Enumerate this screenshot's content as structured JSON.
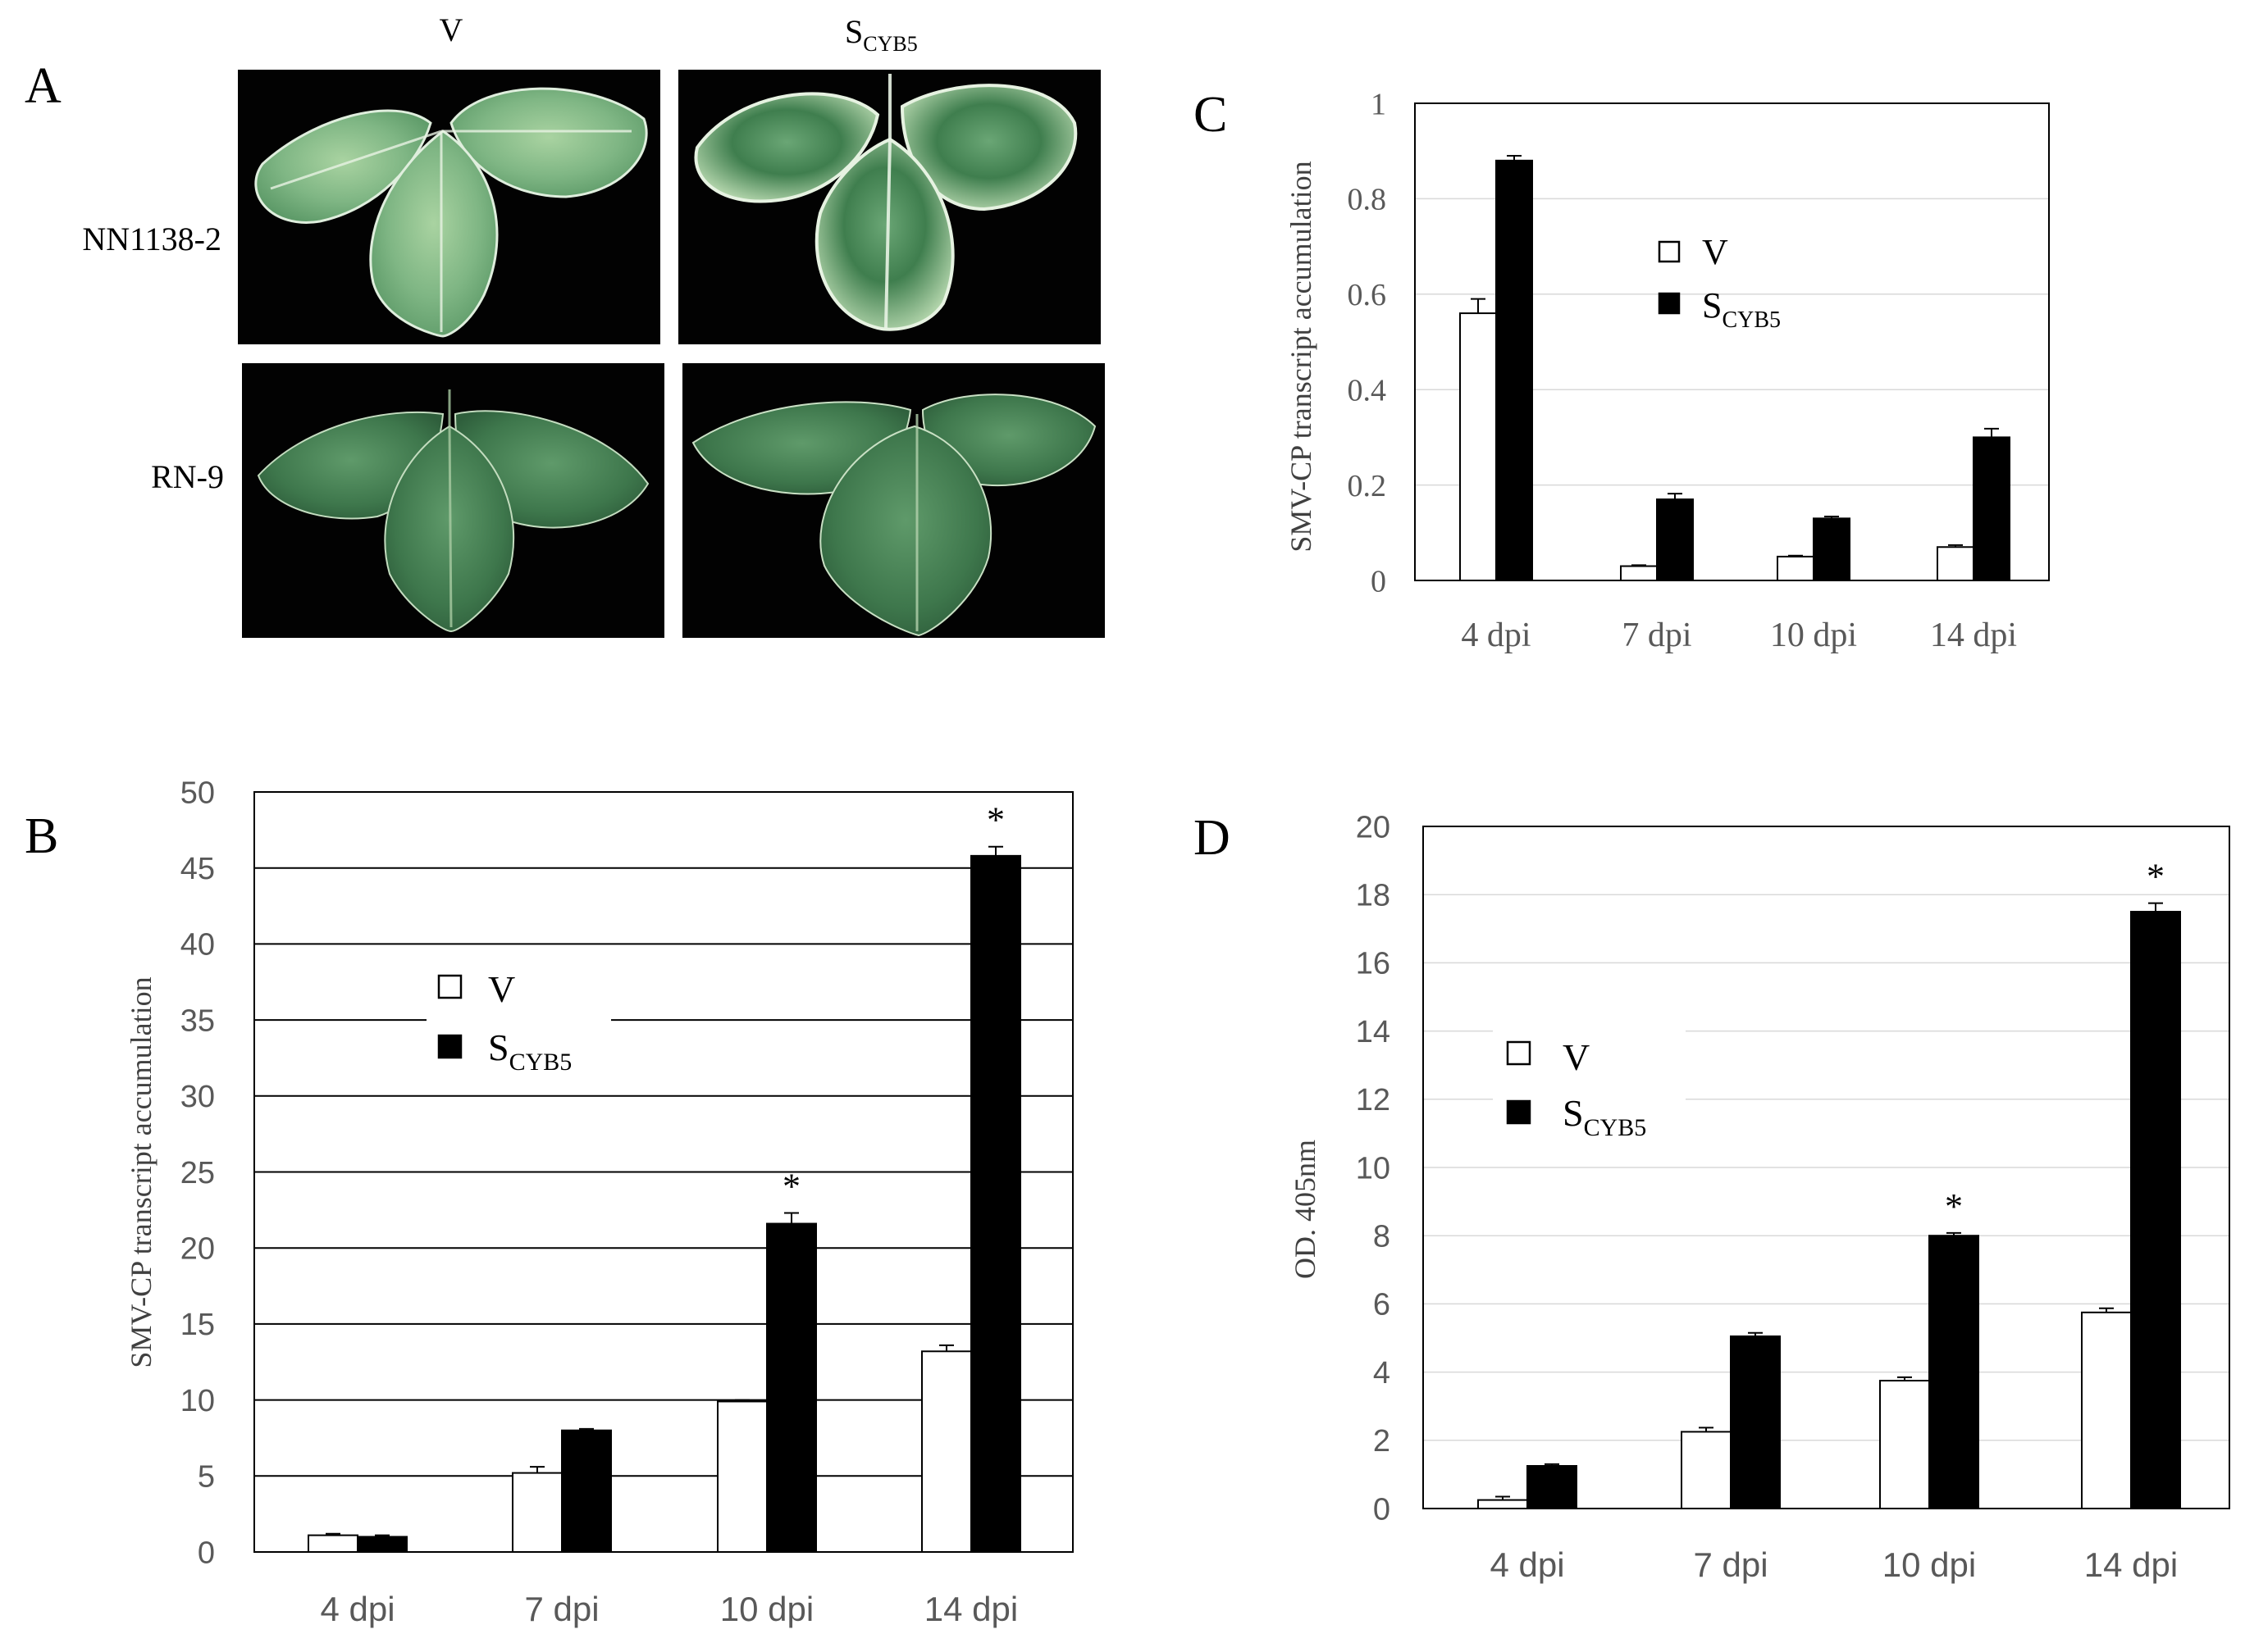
{
  "colors": {
    "bar_v": "#ffffff",
    "bar_s": "#000000",
    "leaf_bg": "#020202",
    "leaf_light": "#8fc38e",
    "leaf_dark": "#3f7b4b",
    "gridline": "#d9d9d9",
    "tick_text": "#595959"
  },
  "panel_a": {
    "letter": "A",
    "col_labels": [
      "V",
      "S",
      "CYB5"
    ],
    "row_labels": [
      "NN1138-2",
      "RN-9"
    ],
    "images": [
      {
        "name": "leaf-photo-nn1138-v",
        "symptom": "mild"
      },
      {
        "name": "leaf-photo-nn1138-s",
        "symptom": "mosaic"
      },
      {
        "name": "leaf-photo-rn9-v",
        "symptom": "none"
      },
      {
        "name": "leaf-photo-rn9-s",
        "symptom": "none"
      }
    ]
  },
  "chart_data": [
    {
      "id": "C",
      "type": "bar",
      "letter": "C",
      "ylabel": "SMV-CP transcript accumulation",
      "categories": [
        "4 dpi",
        "7 dpi",
        "10 dpi",
        "14 dpi"
      ],
      "ylim": [
        0,
        1
      ],
      "yticks": [
        0,
        0.2,
        0.4,
        0.6,
        0.8,
        1
      ],
      "ytick_labels": [
        "0",
        "0.2",
        "0.4",
        "0.6",
        "0.8",
        "1"
      ],
      "grid": "light horizontal",
      "legend_position": "center",
      "legend": {
        "v": "V",
        "s_main": "S",
        "s_sub": "CYB5"
      },
      "series": [
        {
          "name": "V",
          "values": [
            0.56,
            0.03,
            0.05,
            0.07
          ],
          "errors": [
            0.03,
            0.002,
            0.002,
            0.004
          ]
        },
        {
          "name": "SCYB5",
          "values": [
            0.88,
            0.17,
            0.13,
            0.3
          ],
          "errors": [
            0.01,
            0.012,
            0.004,
            0.018
          ]
        }
      ],
      "significance": [
        "",
        "",
        "",
        ""
      ]
    },
    {
      "id": "B",
      "type": "bar",
      "letter": "B",
      "ylabel": "SMV-CP transcript accumulation",
      "categories": [
        "4 dpi",
        "7 dpi",
        "10 dpi",
        "14 dpi"
      ],
      "ylim": [
        0,
        50
      ],
      "yticks": [
        0,
        5,
        10,
        15,
        20,
        25,
        30,
        35,
        40,
        45,
        50
      ],
      "ytick_labels": [
        "0",
        "5",
        "10",
        "15",
        "20",
        "25",
        "30",
        "35",
        "40",
        "45",
        "50"
      ],
      "grid": "black horizontal",
      "legend_position": "upper-left",
      "legend": {
        "v": "V",
        "s_main": "S",
        "s_sub": "CYB5"
      },
      "series": [
        {
          "name": "V",
          "values": [
            1.1,
            5.2,
            9.9,
            13.2
          ],
          "errors": [
            0.1,
            0.4,
            0.1,
            0.4
          ]
        },
        {
          "name": "SCYB5",
          "values": [
            1.0,
            8.0,
            21.6,
            45.8
          ],
          "errors": [
            0.1,
            0.1,
            0.7,
            0.6
          ]
        }
      ],
      "significance": [
        "",
        "",
        "*",
        "*"
      ]
    },
    {
      "id": "D",
      "type": "bar",
      "letter": "D",
      "ylabel": "OD. 405nm",
      "categories": [
        "4 dpi",
        "7 dpi",
        "10 dpi",
        "14 dpi"
      ],
      "ylim": [
        0,
        20
      ],
      "yticks": [
        0,
        2,
        4,
        6,
        8,
        10,
        12,
        14,
        16,
        18,
        20
      ],
      "ytick_labels": [
        "0",
        "2",
        "4",
        "6",
        "8",
        "10",
        "12",
        "14",
        "16",
        "18",
        "20"
      ],
      "grid": "light horizontal",
      "legend_position": "upper-left",
      "legend": {
        "v": "V",
        "s_main": "S",
        "s_sub": "CYB5"
      },
      "series": [
        {
          "name": "V",
          "values": [
            0.25,
            2.25,
            3.75,
            5.75
          ],
          "errors": [
            0.1,
            0.12,
            0.1,
            0.12
          ]
        },
        {
          "name": "SCYB5",
          "values": [
            1.25,
            5.05,
            8.0,
            17.5
          ],
          "errors": [
            0.05,
            0.1,
            0.08,
            0.25
          ]
        }
      ],
      "significance": [
        "",
        "",
        "*",
        "*"
      ]
    }
  ]
}
